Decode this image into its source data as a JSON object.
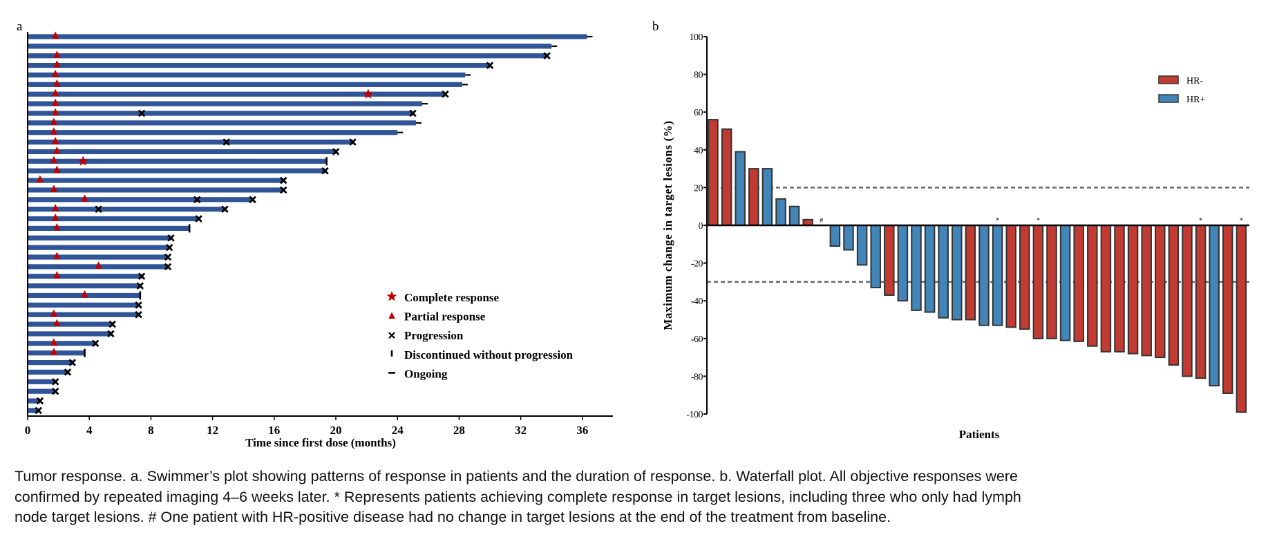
{
  "panel_labels": {
    "a": "a",
    "b": "b"
  },
  "colors": {
    "swim_bar": "#2f5597",
    "response_marker": "#c00000",
    "hr_neg": "#c23b32",
    "hr_pos": "#4285b9",
    "bar_outline": "#333333",
    "threshold_line": "#666666"
  },
  "chart_data": [
    {
      "type": "bar",
      "orientation": "horizontal",
      "subtype": "swimmer",
      "xlabel": "Time since first dose (months)",
      "xlim": [
        0,
        38
      ],
      "xticks": [
        "0",
        "4",
        "8",
        "12",
        "16",
        "20",
        "24",
        "28",
        "32",
        "36"
      ],
      "legend": {
        "placement": "bottom-right",
        "entries": [
          {
            "marker": "star",
            "label": "Complete response"
          },
          {
            "marker": "triangle",
            "label": "Partial response"
          },
          {
            "marker": "x",
            "label": "Progression"
          },
          {
            "marker": "vertical-bar",
            "label": "Discontinued without progression"
          },
          {
            "marker": "dash",
            "label": "Ongoing"
          }
        ]
      },
      "rows": [
        {
          "end": 36.3,
          "pr": [
            1.8
          ],
          "cr": [],
          "progression": [],
          "status": "ongoing"
        },
        {
          "end": 34.0,
          "pr": [],
          "cr": [],
          "progression": [],
          "status": "ongoing"
        },
        {
          "end": 33.7,
          "pr": [
            1.9
          ],
          "cr": [],
          "progression": [
            33.7
          ],
          "status": "progression"
        },
        {
          "end": 30.0,
          "pr": [
            1.9
          ],
          "cr": [],
          "progression": [
            30.0
          ],
          "status": "progression"
        },
        {
          "end": 28.4,
          "pr": [
            1.8
          ],
          "cr": [],
          "progression": [],
          "status": "ongoing"
        },
        {
          "end": 28.2,
          "pr": [
            1.9
          ],
          "cr": [],
          "progression": [],
          "status": "ongoing"
        },
        {
          "end": 27.1,
          "pr": [
            1.8
          ],
          "cr": [
            22.1
          ],
          "progression": [
            27.1
          ],
          "status": "progression"
        },
        {
          "end": 25.6,
          "pr": [
            1.8
          ],
          "cr": [],
          "progression": [],
          "status": "ongoing"
        },
        {
          "end": 25.0,
          "pr": [
            1.8
          ],
          "cr": [],
          "progression": [
            7.4,
            25.0
          ],
          "status": "progression"
        },
        {
          "end": 25.2,
          "pr": [
            1.7
          ],
          "cr": [],
          "progression": [],
          "status": "ongoing"
        },
        {
          "end": 24.0,
          "pr": [
            1.7
          ],
          "cr": [],
          "progression": [],
          "status": "ongoing"
        },
        {
          "end": 21.1,
          "pr": [
            1.8
          ],
          "cr": [],
          "progression": [
            12.9,
            21.1
          ],
          "status": "progression"
        },
        {
          "end": 20.0,
          "pr": [
            1.9
          ],
          "cr": [],
          "progression": [
            20.0
          ],
          "status": "progression"
        },
        {
          "end": 19.4,
          "pr": [
            1.7
          ],
          "cr": [
            3.6
          ],
          "progression": [],
          "status": "discontinued"
        },
        {
          "end": 19.3,
          "pr": [
            1.9
          ],
          "cr": [],
          "progression": [
            19.3
          ],
          "status": "progression"
        },
        {
          "end": 16.6,
          "pr": [
            0.8
          ],
          "cr": [],
          "progression": [
            16.6
          ],
          "status": "progression"
        },
        {
          "end": 16.6,
          "pr": [
            1.7
          ],
          "cr": [],
          "progression": [
            16.6
          ],
          "status": "progression"
        },
        {
          "end": 14.6,
          "pr": [
            3.7
          ],
          "cr": [],
          "progression": [
            11.0,
            14.6
          ],
          "status": "progression"
        },
        {
          "end": 12.8,
          "pr": [
            1.8
          ],
          "cr": [],
          "progression": [
            4.6,
            12.8
          ],
          "status": "progression"
        },
        {
          "end": 11.1,
          "pr": [
            1.8
          ],
          "cr": [],
          "progression": [
            11.1
          ],
          "status": "progression"
        },
        {
          "end": 10.5,
          "pr": [
            1.9
          ],
          "cr": [],
          "progression": [],
          "status": "discontinued"
        },
        {
          "end": 9.3,
          "pr": [],
          "cr": [],
          "progression": [
            9.3
          ],
          "status": "progression"
        },
        {
          "end": 9.2,
          "pr": [],
          "cr": [],
          "progression": [
            9.2
          ],
          "status": "progression"
        },
        {
          "end": 9.1,
          "pr": [
            1.9
          ],
          "cr": [],
          "progression": [
            9.1
          ],
          "status": "progression"
        },
        {
          "end": 9.1,
          "pr": [
            4.6
          ],
          "cr": [],
          "progression": [
            9.1
          ],
          "status": "progression"
        },
        {
          "end": 7.4,
          "pr": [
            1.9
          ],
          "cr": [],
          "progression": [
            7.4
          ],
          "status": "progression"
        },
        {
          "end": 7.3,
          "pr": [],
          "cr": [],
          "progression": [
            7.3
          ],
          "status": "progression"
        },
        {
          "end": 7.3,
          "pr": [
            3.7
          ],
          "cr": [],
          "progression": [],
          "status": "discontinued"
        },
        {
          "end": 7.2,
          "pr": [],
          "cr": [],
          "progression": [
            7.2
          ],
          "status": "progression"
        },
        {
          "end": 7.2,
          "pr": [
            1.7
          ],
          "cr": [],
          "progression": [
            7.2
          ],
          "status": "progression"
        },
        {
          "end": 5.5,
          "pr": [
            1.9
          ],
          "cr": [],
          "progression": [
            5.5
          ],
          "status": "progression"
        },
        {
          "end": 5.4,
          "pr": [],
          "cr": [],
          "progression": [
            5.4
          ],
          "status": "progression"
        },
        {
          "end": 4.4,
          "pr": [
            1.7
          ],
          "cr": [],
          "progression": [
            4.4
          ],
          "status": "progression"
        },
        {
          "end": 3.7,
          "pr": [
            1.7
          ],
          "cr": [],
          "progression": [],
          "status": "discontinued"
        },
        {
          "end": 2.9,
          "pr": [],
          "cr": [],
          "progression": [
            2.9
          ],
          "status": "progression"
        },
        {
          "end": 2.6,
          "pr": [],
          "cr": [],
          "progression": [
            2.6
          ],
          "status": "progression"
        },
        {
          "end": 1.8,
          "pr": [],
          "cr": [],
          "progression": [
            1.8
          ],
          "status": "progression"
        },
        {
          "end": 1.8,
          "pr": [],
          "cr": [],
          "progression": [
            1.8
          ],
          "status": "progression"
        },
        {
          "end": 0.8,
          "pr": [],
          "cr": [],
          "progression": [
            0.8
          ],
          "status": "progression"
        },
        {
          "end": 0.7,
          "pr": [],
          "cr": [],
          "progression": [
            0.7
          ],
          "status": "progression"
        }
      ]
    },
    {
      "type": "bar",
      "subtype": "waterfall",
      "xlabel": "Patients",
      "ylabel": "Maximum change in target lesions (%)",
      "ylim": [
        -100,
        100
      ],
      "yticks": [
        "100",
        "80",
        "60",
        "40",
        "20",
        "0",
        "-20",
        "-40",
        "-60",
        "-80",
        "-100"
      ],
      "reference_lines": [
        20,
        -30
      ],
      "legend": {
        "placement": "top-right",
        "entries": [
          {
            "label": "HR-",
            "group": "neg"
          },
          {
            "label": "HR+",
            "group": "pos"
          }
        ]
      },
      "bars": [
        {
          "value": 56,
          "group": "neg",
          "mark": ""
        },
        {
          "value": 51,
          "group": "neg",
          "mark": ""
        },
        {
          "value": 39,
          "group": "pos",
          "mark": ""
        },
        {
          "value": 30,
          "group": "neg",
          "mark": ""
        },
        {
          "value": 30,
          "group": "pos",
          "mark": ""
        },
        {
          "value": 14,
          "group": "pos",
          "mark": ""
        },
        {
          "value": 10,
          "group": "pos",
          "mark": ""
        },
        {
          "value": 3,
          "group": "neg",
          "mark": ""
        },
        {
          "value": 0,
          "group": "pos",
          "mark": "#"
        },
        {
          "value": -11,
          "group": "pos",
          "mark": ""
        },
        {
          "value": -13,
          "group": "pos",
          "mark": ""
        },
        {
          "value": -21,
          "group": "pos",
          "mark": ""
        },
        {
          "value": -33,
          "group": "pos",
          "mark": ""
        },
        {
          "value": -37,
          "group": "neg",
          "mark": ""
        },
        {
          "value": -40,
          "group": "pos",
          "mark": ""
        },
        {
          "value": -45,
          "group": "pos",
          "mark": ""
        },
        {
          "value": -46,
          "group": "pos",
          "mark": ""
        },
        {
          "value": -49,
          "group": "pos",
          "mark": ""
        },
        {
          "value": -50,
          "group": "pos",
          "mark": ""
        },
        {
          "value": -50,
          "group": "neg",
          "mark": ""
        },
        {
          "value": -53,
          "group": "pos",
          "mark": ""
        },
        {
          "value": -53,
          "group": "pos",
          "mark": "*"
        },
        {
          "value": -54,
          "group": "neg",
          "mark": ""
        },
        {
          "value": -55,
          "group": "neg",
          "mark": ""
        },
        {
          "value": -60,
          "group": "neg",
          "mark": "*"
        },
        {
          "value": -60,
          "group": "neg",
          "mark": ""
        },
        {
          "value": -61,
          "group": "pos",
          "mark": ""
        },
        {
          "value": -61.5,
          "group": "neg",
          "mark": ""
        },
        {
          "value": -64,
          "group": "neg",
          "mark": ""
        },
        {
          "value": -67,
          "group": "neg",
          "mark": ""
        },
        {
          "value": -67,
          "group": "neg",
          "mark": ""
        },
        {
          "value": -68,
          "group": "neg",
          "mark": ""
        },
        {
          "value": -69,
          "group": "neg",
          "mark": ""
        },
        {
          "value": -70,
          "group": "neg",
          "mark": ""
        },
        {
          "value": -74,
          "group": "neg",
          "mark": ""
        },
        {
          "value": -80,
          "group": "neg",
          "mark": ""
        },
        {
          "value": -81,
          "group": "neg",
          "mark": "*"
        },
        {
          "value": -85,
          "group": "pos",
          "mark": ""
        },
        {
          "value": -89,
          "group": "neg",
          "mark": ""
        },
        {
          "value": -99,
          "group": "neg",
          "mark": "*"
        }
      ]
    }
  ],
  "caption": {
    "lines": [
      "Tumor response. a. Swimmer’s plot showing patterns of response in patients and the duration of response. b. Waterfall plot. All objective responses were",
      "confirmed by repeated imaging 4–6 weeks later. * Represents patients achieving complete response in target lesions, including three who only had lymph",
      "node target lesions. # One patient with HR-positive disease had no change in target lesions at the end of the treatment from baseline."
    ]
  }
}
